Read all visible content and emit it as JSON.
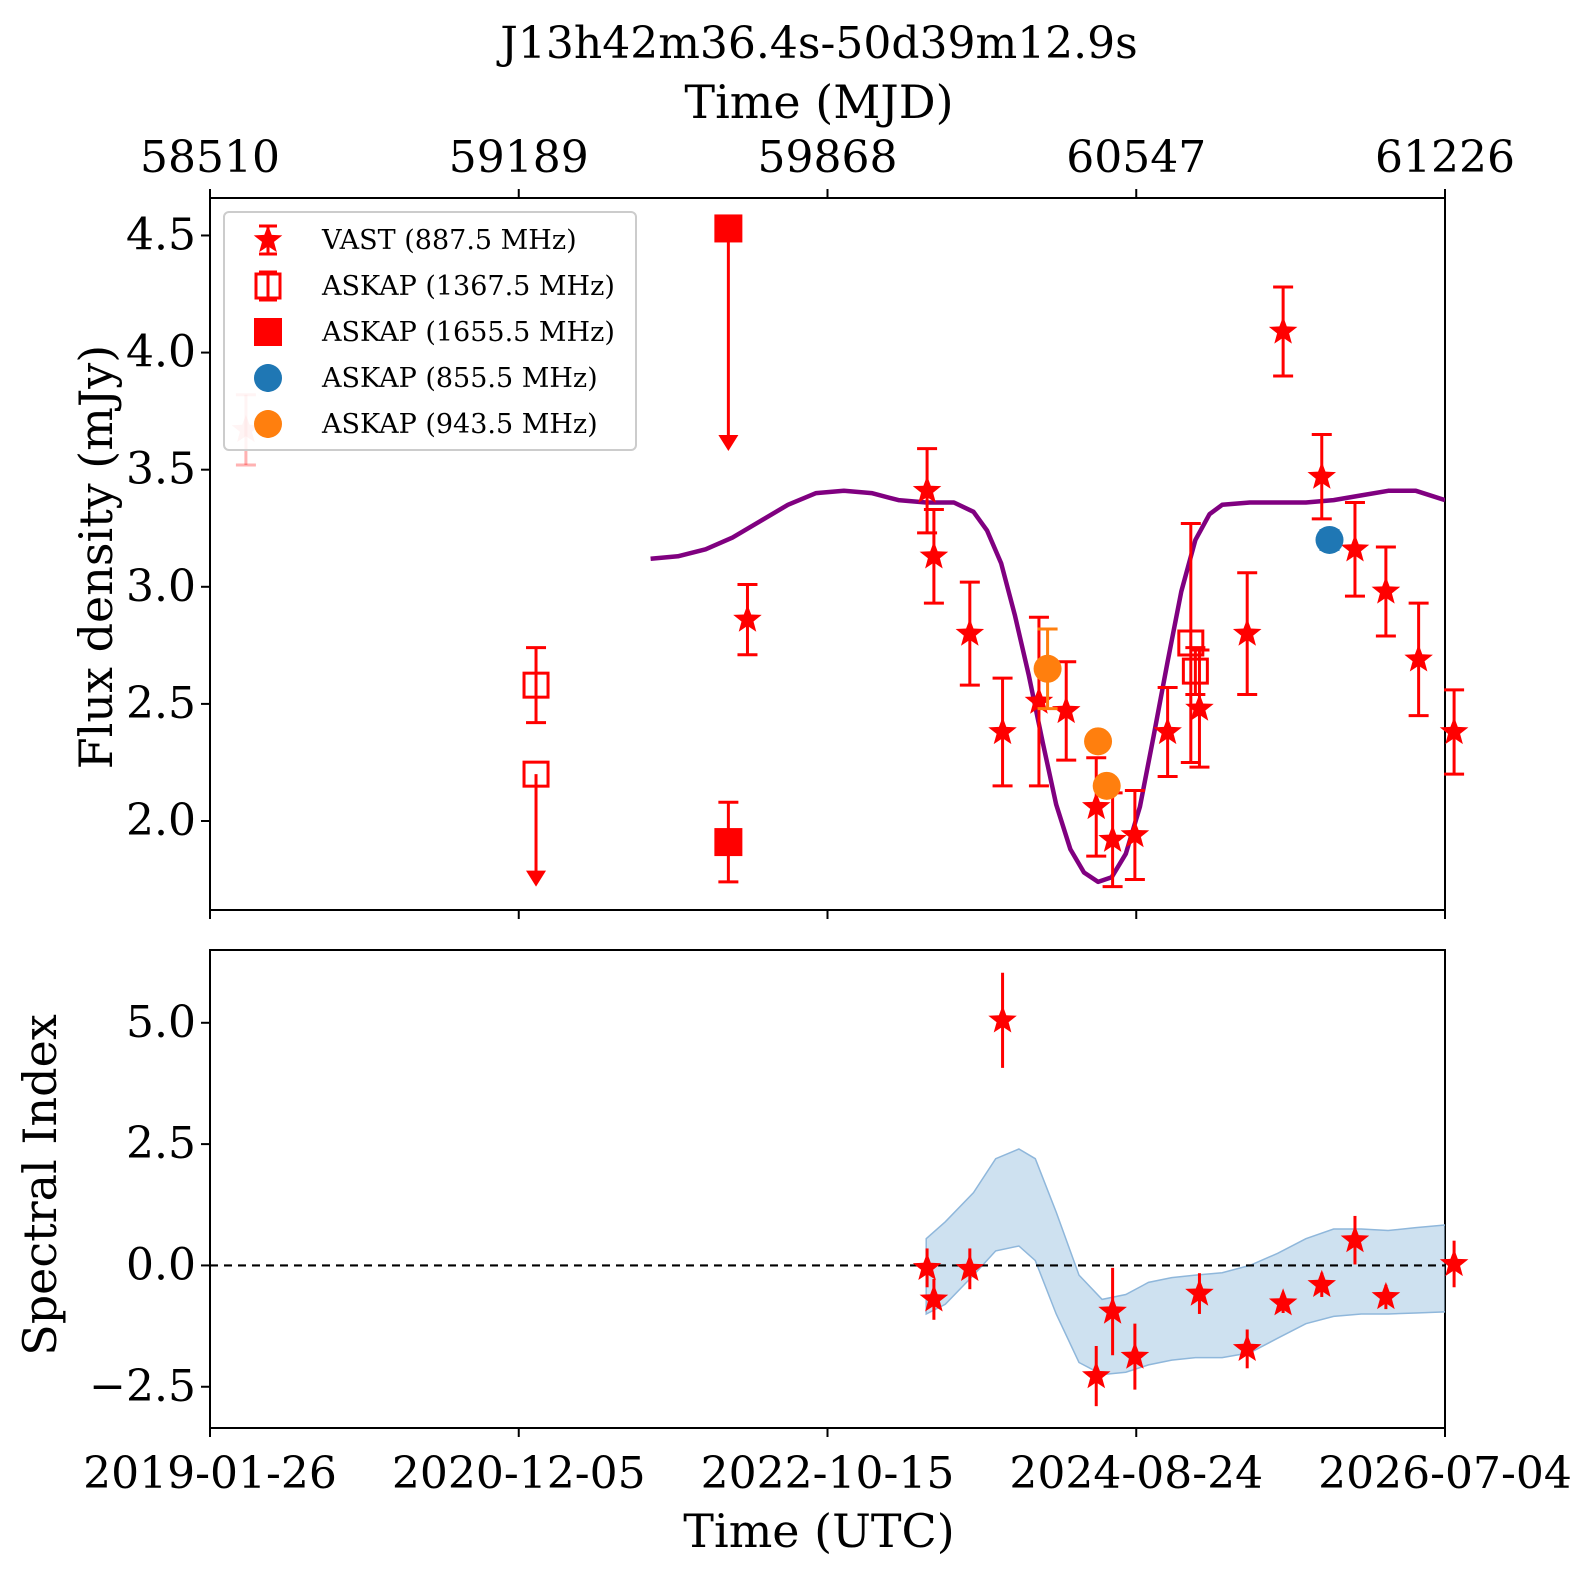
{
  "chart_data": [
    {
      "id": "flux",
      "type": "scatter",
      "title": "J13h42m36.4s-50d39m12.9s",
      "top_xlabel": "Time (MJD)",
      "top_ticks": [
        "58510",
        "59189",
        "59868",
        "60547",
        "61226"
      ],
      "ylabel": "Flux density (mJy)",
      "xlim": [
        "2019-01-26",
        "2026-07-04"
      ],
      "ylim": [
        1.62,
        4.66
      ],
      "yticks": [
        {
          "v": 2.0,
          "label": "2.0"
        },
        {
          "v": 2.5,
          "label": "2.5"
        },
        {
          "v": 3.0,
          "label": "3.0"
        },
        {
          "v": 3.5,
          "label": "3.5"
        },
        {
          "v": 4.0,
          "label": "4.0"
        },
        {
          "v": 4.5,
          "label": "4.5"
        }
      ],
      "legend_position": "top-left",
      "legend": [
        {
          "label": "VAST (887.5 MHz)",
          "marker": "star",
          "color": "#ff0000"
        },
        {
          "label": "ASKAP (1367.5 MHz)",
          "marker": "open-square",
          "color": "#ff0000"
        },
        {
          "label": "ASKAP (1655.5 MHz)",
          "marker": "square",
          "color": "#ff0000"
        },
        {
          "label": "ASKAP (855.5 MHz)",
          "marker": "circle",
          "color": "#1f77b4"
        },
        {
          "label": "ASKAP (943.5 MHz)",
          "marker": "circle",
          "color": "#ff7f0e"
        }
      ],
      "series": [
        {
          "name": "VAST (887.5 MHz)",
          "marker": "star",
          "color": "#ff0000",
          "points": [
            {
              "x": "2019-04-15",
              "y": 3.67,
              "err": 0.15,
              "faded": true
            },
            {
              "x": "2022-04-22",
              "y": 2.86,
              "err": 0.15
            },
            {
              "x": "2023-05-22",
              "y": 3.41,
              "err": 0.18
            },
            {
              "x": "2023-06-06",
              "y": 3.13,
              "err": 0.2
            },
            {
              "x": "2023-08-24",
              "y": 2.8,
              "err": 0.22
            },
            {
              "x": "2023-11-04",
              "y": 2.38,
              "err": 0.23
            },
            {
              "x": "2024-01-23",
              "y": 2.51,
              "err": 0.36
            },
            {
              "x": "2024-03-23",
              "y": 2.47,
              "err": 0.21
            },
            {
              "x": "2024-05-28",
              "y": 2.06,
              "err": 0.21
            },
            {
              "x": "2024-07-03",
              "y": 1.92,
              "err": 0.2
            },
            {
              "x": "2024-08-21",
              "y": 1.94,
              "err": 0.19
            },
            {
              "x": "2024-11-01",
              "y": 2.38,
              "err": 0.19
            },
            {
              "x": "2025-01-10",
              "y": 2.48,
              "err": 0.25
            },
            {
              "x": "2025-04-25",
              "y": 2.8,
              "err": 0.26
            },
            {
              "x": "2025-07-13",
              "y": 4.09,
              "err": 0.19
            },
            {
              "x": "2025-10-06",
              "y": 3.47,
              "err": 0.18
            },
            {
              "x": "2025-12-18",
              "y": 3.16,
              "err": 0.2
            },
            {
              "x": "2026-02-24",
              "y": 2.98,
              "err": 0.19
            },
            {
              "x": "2026-05-07",
              "y": 2.69,
              "err": 0.24
            },
            {
              "x": "2026-07-24",
              "y": 2.38,
              "err": 0.18
            }
          ]
        },
        {
          "name": "ASKAP (1367.5 MHz)",
          "marker": "open-square",
          "color": "#ff0000",
          "points": [
            {
              "x": "2021-01-12",
              "y": 2.58,
              "err": 0.16
            },
            {
              "x": "2021-01-12",
              "y": 2.2,
              "upper_limit": true,
              "arrow_to": 1.72
            },
            {
              "x": "2024-12-22",
              "y": 2.76,
              "err": 0.51
            },
            {
              "x": "2025-01-01",
              "y": 2.64,
              "err": 0.1
            }
          ]
        },
        {
          "name": "ASKAP (1655.5 MHz)",
          "marker": "square",
          "color": "#ff0000",
          "points": [
            {
              "x": "2022-03-11",
              "y": 4.53,
              "upper_limit": true,
              "arrow_to": 3.58
            },
            {
              "x": "2022-03-11",
              "y": 1.91,
              "err": 0.17
            }
          ]
        },
        {
          "name": "ASKAP (855.5 MHz)",
          "marker": "circle",
          "color": "#1f77b4",
          "points": [
            {
              "x": "2025-10-23",
              "y": 3.2,
              "err": 0.04
            }
          ]
        },
        {
          "name": "ASKAP (943.5 MHz)",
          "marker": "circle",
          "color": "#ff7f0e",
          "points": [
            {
              "x": "2024-02-11",
              "y": 2.65,
              "err": 0.17
            },
            {
              "x": "2024-06-01",
              "y": 2.34,
              "err": 0.03
            },
            {
              "x": "2024-06-20",
              "y": 2.15,
              "err": 0.03
            }
          ]
        }
      ],
      "model_curve": {
        "color": "#800080",
        "points": [
          {
            "x": "2021-09-21",
            "y": 3.12
          },
          {
            "x": "2021-11-20",
            "y": 3.13
          },
          {
            "x": "2022-01-20",
            "y": 3.16
          },
          {
            "x": "2022-03-20",
            "y": 3.21
          },
          {
            "x": "2022-05-20",
            "y": 3.28
          },
          {
            "x": "2022-07-20",
            "y": 3.35
          },
          {
            "x": "2022-09-20",
            "y": 3.4
          },
          {
            "x": "2022-11-20",
            "y": 3.41
          },
          {
            "x": "2023-01-20",
            "y": 3.4
          },
          {
            "x": "2023-03-20",
            "y": 3.37
          },
          {
            "x": "2023-05-20",
            "y": 3.36
          },
          {
            "x": "2023-07-20",
            "y": 3.36
          },
          {
            "x": "2023-09-01",
            "y": 3.32
          },
          {
            "x": "2023-10-01",
            "y": 3.24
          },
          {
            "x": "2023-11-01",
            "y": 3.1
          },
          {
            "x": "2023-12-01",
            "y": 2.88
          },
          {
            "x": "2024-01-01",
            "y": 2.62
          },
          {
            "x": "2024-02-01",
            "y": 2.33
          },
          {
            "x": "2024-03-01",
            "y": 2.07
          },
          {
            "x": "2024-04-01",
            "y": 1.88
          },
          {
            "x": "2024-05-01",
            "y": 1.78
          },
          {
            "x": "2024-06-01",
            "y": 1.74
          },
          {
            "x": "2024-07-01",
            "y": 1.76
          },
          {
            "x": "2024-08-01",
            "y": 1.86
          },
          {
            "x": "2024-09-01",
            "y": 2.06
          },
          {
            "x": "2024-10-01",
            "y": 2.36
          },
          {
            "x": "2024-11-01",
            "y": 2.68
          },
          {
            "x": "2024-12-01",
            "y": 2.98
          },
          {
            "x": "2025-01-01",
            "y": 3.2
          },
          {
            "x": "2025-02-01",
            "y": 3.31
          },
          {
            "x": "2025-03-01",
            "y": 3.35
          },
          {
            "x": "2025-05-01",
            "y": 3.36
          },
          {
            "x": "2025-07-01",
            "y": 3.36
          },
          {
            "x": "2025-09-01",
            "y": 3.36
          },
          {
            "x": "2025-11-01",
            "y": 3.37
          },
          {
            "x": "2026-01-01",
            "y": 3.39
          },
          {
            "x": "2026-03-01",
            "y": 3.41
          },
          {
            "x": "2026-05-01",
            "y": 3.41
          },
          {
            "x": "2026-07-04",
            "y": 3.37
          }
        ]
      }
    },
    {
      "id": "spectral",
      "type": "scatter",
      "ylabel": "Spectral Index",
      "xlabel": "Time (UTC)",
      "xlim": [
        "2019-01-26",
        "2026-07-04"
      ],
      "ylim": [
        -3.35,
        6.5
      ],
      "xticks": [
        "2019-01-26",
        "2020-12-05",
        "2022-10-15",
        "2024-08-24",
        "2026-07-04"
      ],
      "yticks": [
        {
          "v": -2.5,
          "label": "−2.5"
        },
        {
          "v": 0.0,
          "label": "0.0"
        },
        {
          "v": 2.5,
          "label": "2.5"
        },
        {
          "v": 5.0,
          "label": "5.0"
        }
      ],
      "reference_line": {
        "y": 0.0,
        "style": "dashed"
      },
      "series": [
        {
          "name": "Spectral index",
          "marker": "star",
          "color": "#ff0000",
          "points": [
            {
              "x": "2023-05-22",
              "y": -0.05,
              "err": 0.4
            },
            {
              "x": "2023-06-06",
              "y": -0.7,
              "err": 0.42
            },
            {
              "x": "2023-08-24",
              "y": -0.07,
              "err": 0.42
            },
            {
              "x": "2023-11-04",
              "y": 5.05,
              "err": 0.98
            },
            {
              "x": "2024-05-28",
              "y": -2.28,
              "err": 0.62
            },
            {
              "x": "2024-07-03",
              "y": -0.95,
              "err": 0.9
            },
            {
              "x": "2024-08-21",
              "y": -1.88,
              "err": 0.68
            },
            {
              "x": "2025-01-10",
              "y": -0.58,
              "err": 0.42
            },
            {
              "x": "2025-04-25",
              "y": -1.72,
              "err": 0.4
            },
            {
              "x": "2025-07-13",
              "y": -0.78,
              "err": 0.2
            },
            {
              "x": "2025-10-06",
              "y": -0.4,
              "err": 0.25
            },
            {
              "x": "2025-12-18",
              "y": 0.52,
              "err": 0.5
            },
            {
              "x": "2026-02-24",
              "y": -0.65,
              "err": 0.25
            },
            {
              "x": "2026-07-24",
              "y": 0.03,
              "err": 0.48
            }
          ]
        }
      ],
      "confidence_band": {
        "color": "#a6c8e3",
        "points": [
          {
            "x": "2023-05-20",
            "lo": -1.0,
            "hi": 0.55
          },
          {
            "x": "2023-07-01",
            "lo": -0.8,
            "hi": 0.9
          },
          {
            "x": "2023-09-01",
            "lo": -0.2,
            "hi": 1.5
          },
          {
            "x": "2023-10-20",
            "lo": 0.3,
            "hi": 2.2
          },
          {
            "x": "2023-12-10",
            "lo": 0.4,
            "hi": 2.4
          },
          {
            "x": "2024-01-15",
            "lo": 0.1,
            "hi": 2.2
          },
          {
            "x": "2024-03-01",
            "lo": -1.0,
            "hi": 1.1
          },
          {
            "x": "2024-04-20",
            "lo": -2.0,
            "hi": -0.2
          },
          {
            "x": "2024-06-10",
            "lo": -2.25,
            "hi": -0.7
          },
          {
            "x": "2024-08-01",
            "lo": -2.2,
            "hi": -0.6
          },
          {
            "x": "2024-09-20",
            "lo": -2.05,
            "hi": -0.35
          },
          {
            "x": "2024-11-10",
            "lo": -1.95,
            "hi": -0.25
          },
          {
            "x": "2025-01-01",
            "lo": -1.9,
            "hi": -0.2
          },
          {
            "x": "2025-03-01",
            "lo": -1.9,
            "hi": -0.15
          },
          {
            "x": "2025-05-01",
            "lo": -1.8,
            "hi": 0.0
          },
          {
            "x": "2025-07-01",
            "lo": -1.5,
            "hi": 0.25
          },
          {
            "x": "2025-09-01",
            "lo": -1.2,
            "hi": 0.55
          },
          {
            "x": "2025-11-01",
            "lo": -1.05,
            "hi": 0.75
          },
          {
            "x": "2026-01-01",
            "lo": -1.0,
            "hi": 0.75
          },
          {
            "x": "2026-03-01",
            "lo": -1.0,
            "hi": 0.72
          },
          {
            "x": "2026-05-01",
            "lo": -0.98,
            "hi": 0.78
          },
          {
            "x": "2026-07-24",
            "lo": -0.95,
            "hi": 0.85
          }
        ]
      }
    }
  ]
}
